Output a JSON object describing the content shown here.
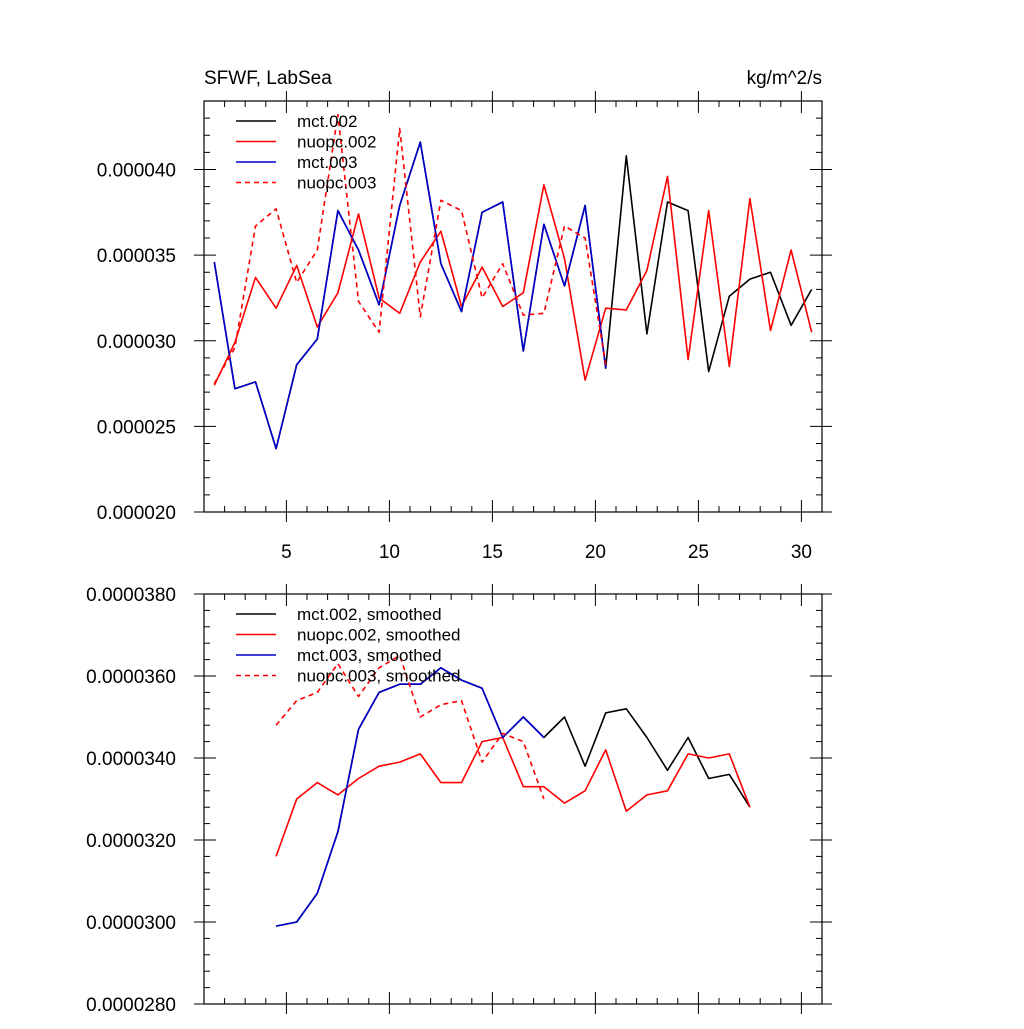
{
  "colors": {
    "black": "#000000",
    "red": "#ff0000",
    "blue": "#0000cc",
    "background": "#ffffff"
  },
  "chart_data": [
    {
      "id": "top",
      "type": "line",
      "title_left": "SFWF, LabSea",
      "title_right": "kg/m^2/s",
      "xlim": [
        1,
        31
      ],
      "ylim": [
        2e-05,
        4.4e-05
      ],
      "xticks": [
        5,
        10,
        15,
        20,
        25,
        30
      ],
      "xtick_labels": [
        "5",
        "10",
        "15",
        "20",
        "25",
        "30"
      ],
      "yticks": [
        2e-05,
        2.5e-05,
        3e-05,
        3.5e-05,
        4e-05
      ],
      "ytick_labels": [
        "0.000020",
        "0.000025",
        "0.000030",
        "0.000035",
        "0.000040"
      ],
      "legend_position": "top-left",
      "series": [
        {
          "name": "mct.002",
          "color": "#000000",
          "dash": "solid",
          "x": [
            1.5,
            2.5,
            3.5,
            4.5,
            5.5,
            6.5,
            7.5,
            8.5,
            9.5,
            10.5,
            11.5,
            12.5,
            13.5,
            14.5,
            15.5,
            16.5,
            17.5,
            18.5,
            19.5,
            20.5,
            21.5,
            22.5,
            23.5,
            24.5,
            25.5,
            26.5,
            27.5,
            28.5,
            29.5,
            30.5
          ],
          "y": [
            3.46e-05,
            2.72e-05,
            2.76e-05,
            2.37e-05,
            2.86e-05,
            3.01e-05,
            3.76e-05,
            3.53e-05,
            3.21e-05,
            3.79e-05,
            4.16e-05,
            3.45e-05,
            3.17e-05,
            3.75e-05,
            3.81e-05,
            2.94e-05,
            3.68e-05,
            3.32e-05,
            3.79e-05,
            2.84e-05,
            4.08e-05,
            3.04e-05,
            3.81e-05,
            3.76e-05,
            2.82e-05,
            3.26e-05,
            3.36e-05,
            3.4e-05,
            3.09e-05,
            3.3e-05
          ]
        },
        {
          "name": "nuopc.002",
          "color": "#ff0000",
          "dash": "solid",
          "x": [
            1.5,
            2.5,
            3.5,
            4.5,
            5.5,
            6.5,
            7.5,
            8.5,
            9.5,
            10.5,
            11.5,
            12.5,
            13.5,
            14.5,
            15.5,
            16.5,
            17.5,
            18.5,
            19.5,
            20.5,
            21.5,
            22.5,
            23.5,
            24.5,
            25.5,
            26.5,
            27.5,
            28.5,
            29.5,
            30.5
          ],
          "y": [
            2.74e-05,
            2.99e-05,
            3.37e-05,
            3.19e-05,
            3.44e-05,
            3.08e-05,
            3.28e-05,
            3.74e-05,
            3.25e-05,
            3.16e-05,
            3.46e-05,
            3.64e-05,
            3.2e-05,
            3.43e-05,
            3.2e-05,
            3.28e-05,
            3.91e-05,
            3.48e-05,
            2.77e-05,
            3.19e-05,
            3.18e-05,
            3.41e-05,
            3.96e-05,
            2.89e-05,
            3.76e-05,
            2.85e-05,
            3.83e-05,
            3.06e-05,
            3.53e-05,
            3.05e-05
          ]
        },
        {
          "name": "mct.003",
          "color": "#0000cc",
          "dash": "solid",
          "x": [
            1.5,
            2.5,
            3.5,
            4.5,
            5.5,
            6.5,
            7.5,
            8.5,
            9.5,
            10.5,
            11.5,
            12.5,
            13.5,
            14.5,
            15.5,
            16.5,
            17.5,
            18.5,
            19.5,
            20.5
          ],
          "y": [
            3.46e-05,
            2.72e-05,
            2.76e-05,
            2.37e-05,
            2.86e-05,
            3.01e-05,
            3.76e-05,
            3.53e-05,
            3.21e-05,
            3.79e-05,
            4.16e-05,
            3.45e-05,
            3.17e-05,
            3.75e-05,
            3.81e-05,
            2.94e-05,
            3.68e-05,
            3.32e-05,
            3.79e-05,
            2.84e-05
          ]
        },
        {
          "name": "nuopc.003",
          "color": "#ff0000",
          "dash": "dashed",
          "x": [
            1.5,
            2.5,
            3.5,
            4.5,
            5.5,
            6.5,
            7.5,
            8.5,
            9.5,
            10.5,
            11.5,
            12.5,
            13.5,
            14.5,
            15.5,
            16.5,
            17.5,
            18.5,
            19.5,
            20.5
          ],
          "y": [
            2.75e-05,
            2.96e-05,
            3.67e-05,
            3.77e-05,
            3.34e-05,
            3.53e-05,
            4.32e-05,
            3.23e-05,
            3.05e-05,
            4.24e-05,
            3.14e-05,
            3.82e-05,
            3.76e-05,
            3.25e-05,
            3.45e-05,
            3.15e-05,
            3.16e-05,
            3.67e-05,
            3.6e-05,
            2.86e-05
          ]
        }
      ]
    },
    {
      "id": "bottom",
      "type": "line",
      "xlim": [
        1,
        31
      ],
      "ylim": [
        2.8e-05,
        3.8e-05
      ],
      "xticks": [
        5,
        10,
        15,
        20,
        25,
        30
      ],
      "xtick_labels": [],
      "yticks": [
        2.8e-05,
        3e-05,
        3.2e-05,
        3.4e-05,
        3.6e-05,
        3.8e-05
      ],
      "ytick_labels": [
        "0.0000280",
        "0.0000300",
        "0.0000320",
        "0.0000340",
        "0.0000360",
        "0.0000380"
      ],
      "legend_position": "top-left",
      "series": [
        {
          "name": "mct.002, smoothed",
          "color": "#000000",
          "dash": "solid",
          "x": [
            4.5,
            5.5,
            6.5,
            7.5,
            8.5,
            9.5,
            10.5,
            11.5,
            12.5,
            13.5,
            14.5,
            15.5,
            16.5,
            17.5,
            18.5,
            19.5,
            20.5,
            21.5,
            22.5,
            23.5,
            24.5,
            25.5,
            26.5,
            27.5
          ],
          "y": [
            2.99e-05,
            3e-05,
            3.07e-05,
            3.22e-05,
            3.47e-05,
            3.56e-05,
            3.58e-05,
            3.58e-05,
            3.62e-05,
            3.59e-05,
            3.57e-05,
            3.45e-05,
            3.5e-05,
            3.45e-05,
            3.5e-05,
            3.38e-05,
            3.51e-05,
            3.52e-05,
            3.45e-05,
            3.37e-05,
            3.45e-05,
            3.35e-05,
            3.36e-05,
            3.28e-05
          ]
        },
        {
          "name": "nuopc.002, smoothed",
          "color": "#ff0000",
          "dash": "solid",
          "x": [
            4.5,
            5.5,
            6.5,
            7.5,
            8.5,
            9.5,
            10.5,
            11.5,
            12.5,
            13.5,
            14.5,
            15.5,
            16.5,
            17.5,
            18.5,
            19.5,
            20.5,
            21.5,
            22.5,
            23.5,
            24.5,
            25.5,
            26.5,
            27.5
          ],
          "y": [
            3.16e-05,
            3.3e-05,
            3.34e-05,
            3.31e-05,
            3.35e-05,
            3.38e-05,
            3.39e-05,
            3.41e-05,
            3.34e-05,
            3.34e-05,
            3.44e-05,
            3.45e-05,
            3.33e-05,
            3.33e-05,
            3.29e-05,
            3.32e-05,
            3.42e-05,
            3.27e-05,
            3.31e-05,
            3.32e-05,
            3.41e-05,
            3.4e-05,
            3.41e-05,
            3.28e-05
          ]
        },
        {
          "name": "mct.003, smoothed",
          "color": "#0000cc",
          "dash": "solid",
          "x": [
            4.5,
            5.5,
            6.5,
            7.5,
            8.5,
            9.5,
            10.5,
            11.5,
            12.5,
            13.5,
            14.5,
            15.5,
            16.5,
            17.5
          ],
          "y": [
            2.99e-05,
            3e-05,
            3.07e-05,
            3.22e-05,
            3.47e-05,
            3.56e-05,
            3.58e-05,
            3.58e-05,
            3.62e-05,
            3.59e-05,
            3.57e-05,
            3.45e-05,
            3.5e-05,
            3.45e-05
          ]
        },
        {
          "name": "nuopc.003, smoothed",
          "color": "#ff0000",
          "dash": "dashed",
          "x": [
            4.5,
            5.5,
            6.5,
            7.5,
            8.5,
            9.5,
            10.5,
            11.5,
            12.5,
            13.5,
            14.5,
            15.5,
            16.5,
            17.5
          ],
          "y": [
            3.48e-05,
            3.54e-05,
            3.56e-05,
            3.63e-05,
            3.55e-05,
            3.62e-05,
            3.65e-05,
            3.5e-05,
            3.53e-05,
            3.54e-05,
            3.39e-05,
            3.46e-05,
            3.44e-05,
            3.3e-05
          ]
        }
      ]
    }
  ]
}
